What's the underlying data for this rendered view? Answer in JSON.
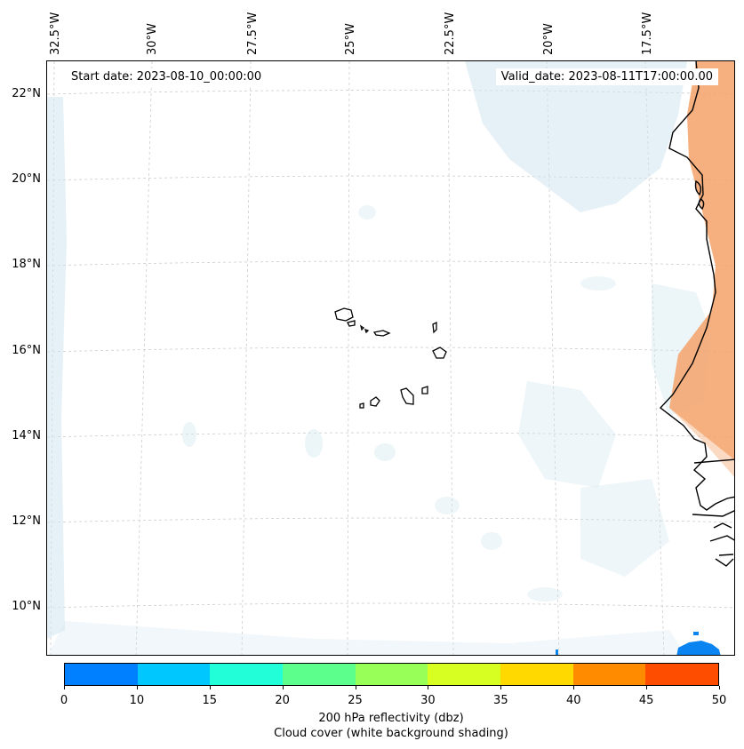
{
  "map": {
    "start_date": "Start date: 2023-08-10_00:00:00",
    "valid_date": "Valid_date: 2023-08-11T17:00:00.00",
    "lon_labels": [
      "32.5°W",
      "30°W",
      "27.5°W",
      "25°W",
      "22.5°W",
      "20°W",
      "17.5°W"
    ],
    "lat_labels": [
      "22°N",
      "20°N",
      "18°N",
      "16°N",
      "14°N",
      "12°N",
      "10°N"
    ],
    "colors": {
      "coastline": "#000000",
      "cloud_cover": "#cfe6ee",
      "land_warm": "#f4a26a",
      "reflectivity_blue": "#0a84f0",
      "gridline": "#cccccc"
    }
  },
  "colorbar": {
    "label": "200 hPa reflectivity (dbz)",
    "sublabel": "Cloud cover (white background shading)",
    "ticks": [
      "0",
      "10",
      "15",
      "20",
      "25",
      "30",
      "35",
      "40",
      "45",
      "50"
    ],
    "colors": [
      "#0080ff",
      "#00c8ff",
      "#22ffd8",
      "#5cff8c",
      "#98ff58",
      "#d8ff22",
      "#ffd900",
      "#ff8c00",
      "#ff4d00"
    ]
  }
}
